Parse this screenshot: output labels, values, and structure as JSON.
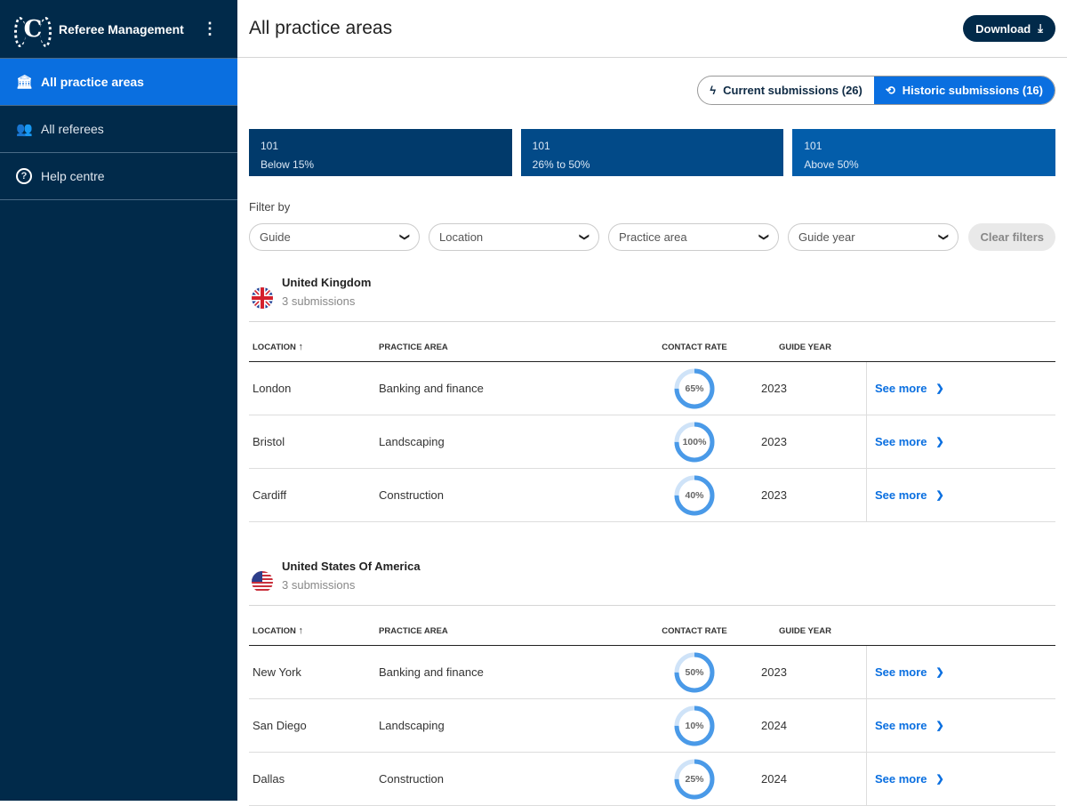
{
  "sidebar": {
    "brand": "Referee Management",
    "logo_letter": "C",
    "items": [
      {
        "label": "All practice areas",
        "icon": "bank-icon"
      },
      {
        "label": "All referees",
        "icon": "users-icon"
      },
      {
        "label": "Help centre",
        "icon": "help-icon"
      }
    ]
  },
  "header": {
    "title": "All practice areas",
    "download": "Download"
  },
  "toggle": {
    "current": "Current submissions (26)",
    "historic": "Historic submissions (16)"
  },
  "cards": [
    {
      "count": "101",
      "label": "Below 15%",
      "color": "#013a6b"
    },
    {
      "count": "101",
      "label": "26% to 50%",
      "color": "#024a88"
    },
    {
      "count": "101",
      "label": "Above 50%",
      "color": "#035daa"
    }
  ],
  "filters": {
    "label": "Filter by",
    "items": [
      "Guide",
      "Location",
      "Practice area",
      "Guide year"
    ],
    "clear": "Clear filters"
  },
  "columns": {
    "location": "LOCATION",
    "practice": "PRACTICE AREA",
    "contact": "CONTACT RATE",
    "year": "GUIDE YEAR"
  },
  "groups": [
    {
      "name": "United Kingdom",
      "sub": "3 submissions",
      "flag": "uk",
      "rows": [
        {
          "location": "London",
          "practice": "Banking and finance",
          "rate": "65%",
          "year": "2023",
          "action": "See more"
        },
        {
          "location": "Bristol",
          "practice": "Landscaping",
          "rate": "100%",
          "year": "2023",
          "action": "See more"
        },
        {
          "location": "Cardiff",
          "practice": "Construction",
          "rate": "40%",
          "year": "2023",
          "action": "See more"
        }
      ]
    },
    {
      "name": "United States Of America",
      "sub": "3 submissions",
      "flag": "us",
      "rows": [
        {
          "location": "New York",
          "practice": "Banking and finance",
          "rate": "50%",
          "year": "2023",
          "action": "See more"
        },
        {
          "location": "San Diego",
          "practice": "Landscaping",
          "rate": "10%",
          "year": "2024",
          "action": "See more"
        },
        {
          "location": "Dallas",
          "practice": "Construction",
          "rate": "25%",
          "year": "2024",
          "action": "See more"
        }
      ]
    }
  ]
}
